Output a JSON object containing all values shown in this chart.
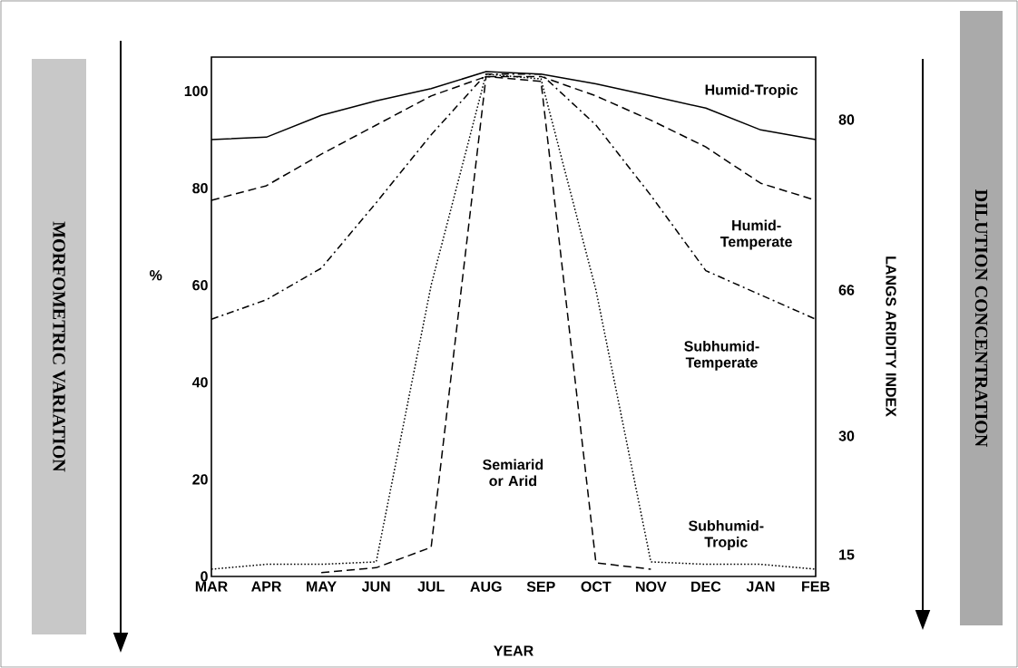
{
  "chart_data": {
    "type": "line",
    "xlabel": "YEAR",
    "ylabel": "%",
    "y2label": "LANGS ARIDITY INDEX",
    "categories": [
      "MAR",
      "APR",
      "MAY",
      "JUN",
      "JUL",
      "AUG",
      "SEP",
      "OCT",
      "NOV",
      "DEC",
      "JAN",
      "FEB"
    ],
    "ylim": [
      0,
      107
    ],
    "yticks": [
      0,
      20,
      40,
      60,
      80,
      100
    ],
    "grid": false,
    "legend": false,
    "marker": "none",
    "annotations": [
      "MORFOMETRIC VARIATION",
      "DILUTION CONCENTRATION",
      "80",
      "66",
      "30",
      "15"
    ],
    "series": [
      {
        "name": "Humid-Tropic",
        "color": "#000000",
        "line_style": "solid",
        "values": [
          90,
          90.5,
          95,
          98,
          100.5,
          104,
          103.5,
          101.5,
          99,
          96.5,
          92,
          90
        ]
      },
      {
        "name": "Humid-Temperate",
        "color": "#000000",
        "line_style": "dashed",
        "values": [
          77.5,
          80.5,
          87,
          93,
          99,
          103,
          103,
          99,
          94,
          88.5,
          81,
          77.5
        ]
      },
      {
        "name": "Subhumid-Temperate",
        "color": "#000000",
        "line_style": "dashdot",
        "values": [
          53,
          57,
          63.5,
          77,
          91,
          103.5,
          103.5,
          93,
          78.5,
          63,
          58,
          53
        ]
      },
      {
        "name": "Subhumid-Tropic",
        "color": "#000000",
        "line_style": "dotted",
        "values": [
          1.5,
          2.5,
          2.5,
          3,
          60,
          103.5,
          102.5,
          59,
          3,
          2.5,
          2.5,
          1.5
        ]
      },
      {
        "name": "Semiarid or Arid",
        "color": "#000000",
        "line_style": "dashed",
        "values": [
          null,
          null,
          0.8,
          1.8,
          6,
          103,
          102,
          2.8,
          1.5,
          null,
          null,
          null
        ]
      }
    ]
  }
}
